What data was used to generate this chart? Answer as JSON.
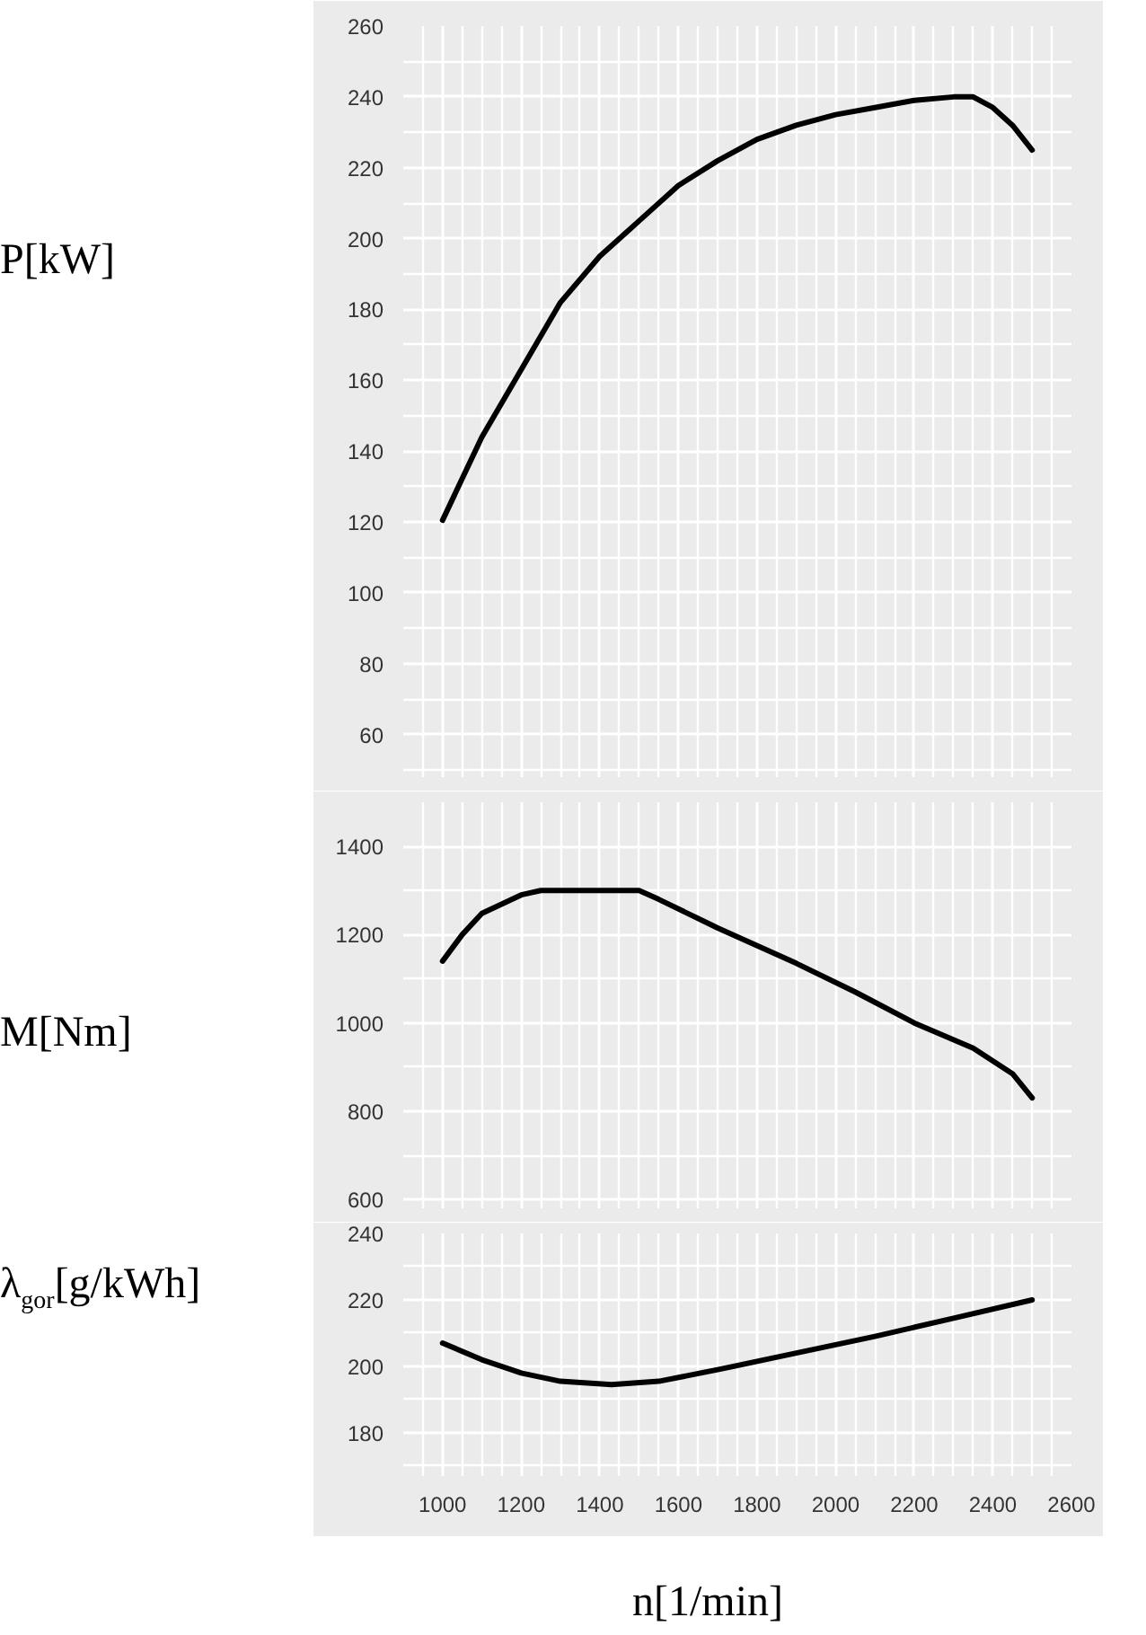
{
  "chart_data": [
    {
      "type": "line",
      "ylabel": "P[kW]",
      "x": [
        1000,
        1100,
        1200,
        1300,
        1400,
        1500,
        1600,
        1700,
        1800,
        1900,
        2000,
        2100,
        2200,
        2300,
        2350,
        2400,
        2450,
        2500
      ],
      "series": [
        {
          "color": "#000000",
          "values": [
            120.5,
            144,
            163,
            182,
            195,
            205,
            215,
            222,
            228,
            232,
            235,
            237,
            239,
            240,
            240,
            237,
            232,
            225
          ]
        }
      ],
      "xlim": [
        900,
        2600
      ],
      "xticks": [
        1000,
        1200,
        1400,
        1600,
        1800,
        2000,
        2200,
        2400,
        2600
      ],
      "ylim": [
        48,
        260
      ],
      "yticks": [
        60,
        80,
        100,
        120,
        140,
        160,
        180,
        200,
        220,
        240,
        260
      ],
      "grid": true,
      "tick_labels": "y"
    },
    {
      "type": "line",
      "ylabel": "M[Nm]",
      "x": [
        1000,
        1050,
        1100,
        1200,
        1250,
        1500,
        1550,
        1700,
        1900,
        2050,
        2200,
        2350,
        2450,
        2500
      ],
      "series": [
        {
          "color": "#000000",
          "values": [
            1140,
            1200,
            1248,
            1290,
            1300,
            1300,
            1280,
            1215,
            1135,
            1070,
            1000,
            943,
            885,
            830
          ]
        }
      ],
      "xlim": [
        900,
        2600
      ],
      "xticks": [
        1000,
        1200,
        1400,
        1600,
        1800,
        2000,
        2200,
        2400,
        2600
      ],
      "ylim": [
        580,
        1500
      ],
      "yticks": [
        600,
        800,
        1000,
        1200,
        1400
      ],
      "grid": true,
      "tick_labels": "y"
    },
    {
      "type": "line",
      "ylabel": "λ$_{gor}$[g/kWh]",
      "xlabel": "n[1/min]",
      "x": [
        1000,
        1100,
        1200,
        1300,
        1430,
        1550,
        1700,
        1900,
        2100,
        2300,
        2500
      ],
      "series": [
        {
          "color": "#000000",
          "values": [
            207,
            202,
            198,
            195.5,
            194.5,
            195.5,
            199,
            204,
            209,
            214.5,
            220
          ]
        }
      ],
      "xlim": [
        900,
        2600
      ],
      "xticks": [
        1000,
        1200,
        1400,
        1600,
        1800,
        2000,
        2200,
        2400,
        2600
      ],
      "ylim": [
        167,
        240
      ],
      "yticks": [
        180,
        200,
        220,
        240
      ],
      "grid": true
    }
  ]
}
